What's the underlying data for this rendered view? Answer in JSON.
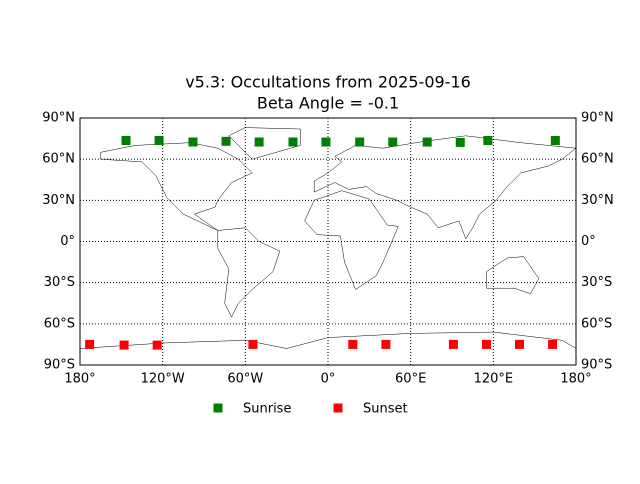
{
  "chart_data": {
    "type": "scatter",
    "title": "v5.3: Occultations from 2025-09-16",
    "subtitle": "Beta Angle = -0.1",
    "xlim": [
      -180,
      180
    ],
    "ylim": [
      -90,
      90
    ],
    "xticks": [
      {
        "value": -180,
        "label": "180°"
      },
      {
        "value": -120,
        "label": "120°W"
      },
      {
        "value": -60,
        "label": "60°W"
      },
      {
        "value": 0,
        "label": "0°"
      },
      {
        "value": 60,
        "label": "60°E"
      },
      {
        "value": 120,
        "label": "120°E"
      },
      {
        "value": 180,
        "label": "180°"
      }
    ],
    "yticks": [
      {
        "value": -90,
        "label": "90°S"
      },
      {
        "value": -60,
        "label": "60°S"
      },
      {
        "value": -30,
        "label": "30°S"
      },
      {
        "value": 0,
        "label": "0°"
      },
      {
        "value": 30,
        "label": "30°N"
      },
      {
        "value": 60,
        "label": "60°N"
      },
      {
        "value": 90,
        "label": "90°N"
      }
    ],
    "grid": true,
    "series": [
      {
        "name": "Sunrise",
        "color": "#008000",
        "x": [
          -146.6,
          -122.6,
          -98,
          -74,
          -50,
          -25.4,
          -1.5,
          23,
          47,
          72,
          96,
          116,
          165
        ],
        "y": [
          73.6,
          73.6,
          72.5,
          73,
          72.5,
          72.5,
          72.5,
          72.5,
          72.5,
          72.5,
          72.2,
          73.6,
          73.6
        ]
      },
      {
        "name": "Sunset",
        "color": "#ff0000",
        "x": [
          -173,
          -148,
          -124,
          -54.5,
          18,
          42,
          91,
          115,
          139,
          163
        ],
        "y": [
          -75,
          -75.5,
          -75.5,
          -75,
          -75,
          -75,
          -75,
          -75,
          -75,
          -75
        ]
      }
    ],
    "legend": "lower center"
  }
}
